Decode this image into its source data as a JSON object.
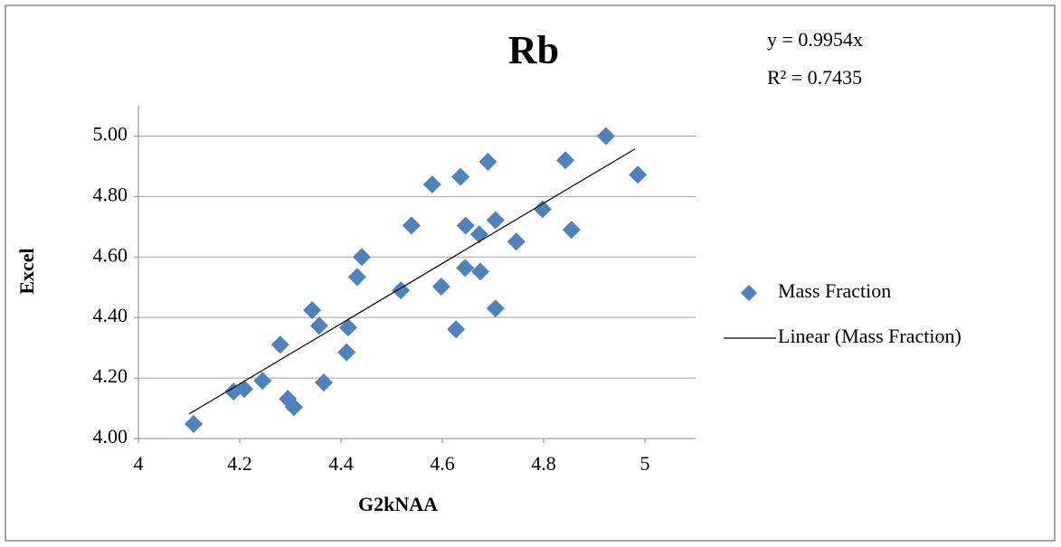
{
  "chart_data": {
    "type": "scatter",
    "title": "Rb",
    "annotations": [
      "y = 0.9954x",
      "R² = 0.7435"
    ],
    "x_label": "G2kNAA",
    "y_label": "Excel",
    "xlim": [
      4,
      5.1
    ],
    "ylim": [
      4,
      5.1
    ],
    "xticks": [
      4,
      4.2,
      4.4,
      4.6,
      4.8,
      5
    ],
    "yticks": [
      {
        "value": 4,
        "label": "4.00"
      },
      {
        "value": 4.2,
        "label": "4.20"
      },
      {
        "value": 4.4,
        "label": "4.40"
      },
      {
        "value": 4.6,
        "label": "4.60"
      },
      {
        "value": 4.8,
        "label": "4.80"
      },
      {
        "value": 5,
        "label": "5.00"
      }
    ],
    "grid": true,
    "series": [
      {
        "name": "Mass Fraction",
        "color": "#4f81bd",
        "x": [
          4.109,
          4.188,
          4.209,
          4.245,
          4.28,
          4.295,
          4.307,
          4.343,
          4.357,
          4.366,
          4.414,
          4.411,
          4.432,
          4.441,
          4.518,
          4.539,
          4.58,
          4.636,
          4.69,
          4.843,
          4.923,
          4.598,
          4.627,
          4.646,
          4.645,
          4.673,
          4.675,
          4.705,
          4.705,
          4.746,
          4.798,
          4.855,
          4.986
        ],
        "values": [
          4.048,
          4.155,
          4.164,
          4.191,
          4.31,
          4.131,
          4.104,
          4.424,
          4.373,
          4.185,
          4.367,
          4.285,
          4.534,
          4.6,
          4.49,
          4.704,
          4.84,
          4.865,
          4.915,
          4.92,
          5.0,
          4.502,
          4.361,
          4.704,
          4.564,
          4.675,
          4.552,
          4.722,
          4.43,
          4.651,
          4.758,
          4.69,
          4.872
        ]
      },
      {
        "name": "Linear (Mass Fraction)",
        "color": "#000000",
        "type": "line",
        "x": [
          4.1,
          4.98
        ],
        "values": [
          4.081,
          4.957
        ]
      }
    ]
  }
}
